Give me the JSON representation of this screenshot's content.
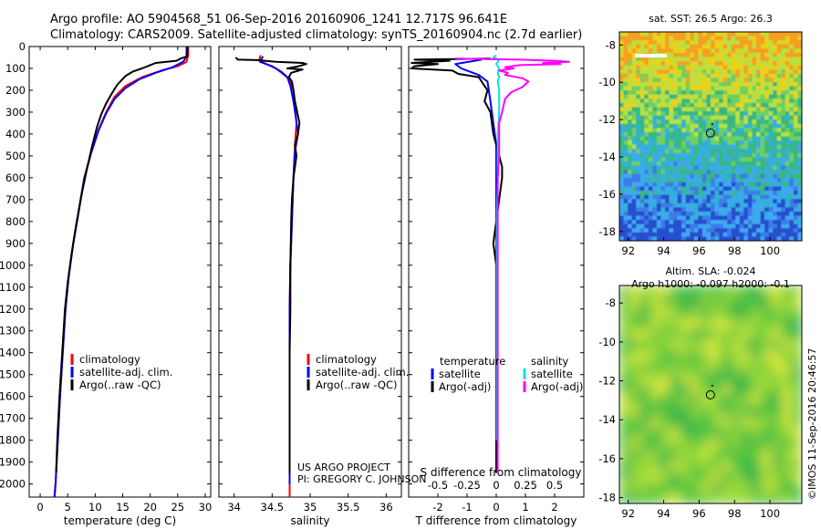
{
  "header": {
    "line1": "Argo profile: AO 5904568_51 06-Sep-2016 20160906_1241 12.717S 96.641E",
    "line2": "Climatology: CARS2009. Satellite-adjusted climatology: synTS_20160904.nc (2.7d earlier)"
  },
  "credit": {
    "project": "US ARGO PROJECT",
    "pi": "PI: GREGORY C. JOHNSON",
    "imos": "©IMOS 11-Sep-2016 20:46:57"
  },
  "colors": {
    "climatology": "#ff0000",
    "satellite_adj": "#0000ff",
    "argo": "#000000",
    "salinity_sat": "#00e5e5",
    "salinity_argo": "#ff00ff"
  },
  "chart_data": [
    {
      "type": "line",
      "id": "temperature",
      "xlabel": "temperature (deg C)",
      "xlim": [
        -2,
        31
      ],
      "ylim": [
        2060,
        0
      ],
      "xticks": [
        0,
        5,
        10,
        15,
        20,
        25,
        30
      ],
      "yticks": [
        0,
        100,
        200,
        300,
        400,
        500,
        600,
        700,
        800,
        900,
        1000,
        1100,
        1200,
        1300,
        1400,
        1500,
        1600,
        1700,
        1800,
        1900,
        2000
      ],
      "legend": [
        "climatology",
        "satellite-adj. clim.",
        "Argo(..raw -QC)"
      ],
      "series": [
        {
          "name": "climatology",
          "color": "#ff0000",
          "points": [
            [
              26.9,
              0
            ],
            [
              26.9,
              40
            ],
            [
              26.6,
              70
            ],
            [
              25,
              90
            ],
            [
              22,
              110
            ],
            [
              18.5,
              140
            ],
            [
              15.5,
              180
            ],
            [
              13.5,
              230
            ],
            [
              12,
              300
            ],
            [
              10.6,
              380
            ],
            [
              9.3,
              480
            ],
            [
              8,
              600
            ],
            [
              7,
              750
            ],
            [
              6,
              900
            ],
            [
              5.2,
              1050
            ],
            [
              4.6,
              1200
            ],
            [
              4.1,
              1400
            ],
            [
              3.6,
              1600
            ],
            [
              3.2,
              1800
            ],
            [
              2.8,
              2000
            ],
            [
              2.6,
              2060
            ]
          ]
        },
        {
          "name": "satellite-adj. clim.",
          "color": "#0000ff",
          "points": [
            [
              26.6,
              0
            ],
            [
              26.6,
              45
            ],
            [
              26,
              70
            ],
            [
              24,
              95
            ],
            [
              21,
              120
            ],
            [
              18,
              150
            ],
            [
              15.5,
              190
            ],
            [
              13.5,
              240
            ],
            [
              12,
              305
            ],
            [
              10.6,
              385
            ],
            [
              9.3,
              485
            ],
            [
              8,
              605
            ],
            [
              7,
              755
            ],
            [
              6,
              905
            ],
            [
              5.2,
              1050
            ],
            [
              4.6,
              1200
            ],
            [
              4.1,
              1400
            ],
            [
              3.6,
              1600
            ],
            [
              3.2,
              1800
            ],
            [
              2.8,
              2000
            ],
            [
              2.6,
              2060
            ]
          ]
        },
        {
          "name": "Argo(..raw -QC)",
          "color": "#000000",
          "points": [
            [
              26.8,
              0
            ],
            [
              26.7,
              45
            ],
            [
              25.5,
              55
            ],
            [
              24.8,
              65
            ],
            [
              21,
              75
            ],
            [
              20,
              85
            ],
            [
              18.5,
              100
            ],
            [
              16.8,
              115
            ],
            [
              15.5,
              135
            ],
            [
              14,
              175
            ],
            [
              13,
              215
            ],
            [
              12,
              260
            ],
            [
              11.1,
              310
            ],
            [
              10.3,
              370
            ],
            [
              9.4,
              460
            ],
            [
              8.5,
              560
            ],
            [
              7.5,
              680
            ],
            [
              6.5,
              820
            ],
            [
              5.7,
              950
            ],
            [
              5,
              1080
            ],
            [
              4.5,
              1200
            ],
            [
              4,
              1400
            ],
            [
              3.5,
              1600
            ],
            [
              3.1,
              1800
            ],
            [
              2.9,
              1950
            ]
          ]
        }
      ]
    },
    {
      "type": "line",
      "id": "salinity",
      "xlabel": "salinity",
      "xlim": [
        33.8,
        36.2
      ],
      "ylim": [
        2060,
        0
      ],
      "xticks": [
        34,
        34.5,
        35,
        35.5,
        36
      ],
      "legend": [
        "climatology",
        "satellite-adj. clim.",
        "Argo(..raw -QC)"
      ],
      "series": [
        {
          "name": "climatology",
          "color": "#ff0000",
          "points": [
            [
              34.35,
              40
            ],
            [
              34.33,
              60
            ],
            [
              34.42,
              80
            ],
            [
              34.55,
              100
            ],
            [
              34.73,
              150
            ],
            [
              34.78,
              200
            ],
            [
              34.8,
              280
            ],
            [
              34.82,
              350
            ],
            [
              34.8,
              450
            ],
            [
              34.78,
              600
            ],
            [
              34.76,
              800
            ],
            [
              34.74,
              1000
            ],
            [
              34.73,
              1200
            ],
            [
              34.73,
              1400
            ],
            [
              34.73,
              1600
            ],
            [
              34.73,
              1800
            ],
            [
              34.73,
              2000
            ],
            [
              34.73,
              2060
            ]
          ]
        },
        {
          "name": "satellite-adj. clim.",
          "color": "#0000ff",
          "points": [
            [
              34.38,
              45
            ],
            [
              34.34,
              70
            ],
            [
              34.5,
              90
            ],
            [
              34.62,
              115
            ],
            [
              34.7,
              140
            ],
            [
              34.74,
              180
            ],
            [
              34.78,
              250
            ],
            [
              34.81,
              320
            ],
            [
              34.84,
              400
            ],
            [
              34.8,
              480
            ],
            [
              34.78,
              600
            ],
            [
              34.76,
              800
            ],
            [
              34.74,
              1000
            ],
            [
              34.73,
              1200
            ],
            [
              34.73,
              1400
            ],
            [
              34.73,
              1600
            ],
            [
              34.73,
              1800
            ],
            [
              34.73,
              2000
            ]
          ]
        },
        {
          "name": "Argo(..raw -QC)",
          "color": "#000000",
          "points": [
            [
              34.02,
              50
            ],
            [
              34.05,
              60
            ],
            [
              34.3,
              62
            ],
            [
              34.55,
              70
            ],
            [
              34.9,
              75
            ],
            [
              34.95,
              80
            ],
            [
              34.85,
              90
            ],
            [
              34.7,
              100
            ],
            [
              34.9,
              105
            ],
            [
              34.75,
              120
            ],
            [
              34.72,
              140
            ],
            [
              34.76,
              160
            ],
            [
              34.78,
              200
            ],
            [
              34.8,
              250
            ],
            [
              34.83,
              300
            ],
            [
              34.86,
              350
            ],
            [
              34.84,
              400
            ],
            [
              34.8,
              450
            ],
            [
              34.82,
              500
            ],
            [
              34.78,
              600
            ],
            [
              34.76,
              700
            ],
            [
              34.75,
              800
            ],
            [
              34.74,
              1000
            ],
            [
              34.74,
              1200
            ],
            [
              34.73,
              1400
            ],
            [
              34.73,
              1600
            ],
            [
              34.73,
              1800
            ],
            [
              34.73,
              1950
            ]
          ]
        }
      ]
    },
    {
      "type": "line",
      "id": "difference",
      "xlabel": "T difference from climatology",
      "xlabel_top": "S difference from climatology",
      "xlim": [
        -3,
        3
      ],
      "ylim": [
        2060,
        0
      ],
      "xticks": [
        -2,
        -1,
        0,
        1,
        2
      ],
      "xticks_top": [
        "-0.5",
        "-0.25",
        "0",
        "0.25",
        "0.5"
      ],
      "legend_left": {
        "title": "temperature",
        "items": [
          "satellite",
          "Argo(-adj)"
        ]
      },
      "legend_right": {
        "title": "salinity",
        "items": [
          "satellite",
          "Argo(-adj)"
        ]
      },
      "series": [
        {
          "name": "temperature satellite",
          "color": "#0000ff",
          "points": [
            [
              -0.5,
              60
            ],
            [
              -1.4,
              80
            ],
            [
              -1.2,
              100
            ],
            [
              -0.6,
              130
            ],
            [
              -0.3,
              160
            ],
            [
              -0.2,
              250
            ],
            [
              -0.1,
              350
            ],
            [
              0,
              450
            ],
            [
              0,
              600
            ],
            [
              0,
              800
            ],
            [
              0,
              1000
            ],
            [
              0,
              1200
            ],
            [
              0,
              1400
            ],
            [
              0,
              1600
            ],
            [
              0,
              1800
            ],
            [
              0,
              1900
            ]
          ]
        },
        {
          "name": "temperature Argo(-adj)",
          "color": "#000000",
          "points": [
            [
              -0.2,
              55
            ],
            [
              -2.8,
              60
            ],
            [
              -1.6,
              65
            ],
            [
              -2.9,
              75
            ],
            [
              -2,
              80
            ],
            [
              -2.8,
              90
            ],
            [
              -2.9,
              100
            ],
            [
              -1.5,
              110
            ],
            [
              -1.3,
              125
            ],
            [
              -0.6,
              140
            ],
            [
              -0.5,
              160
            ],
            [
              -0.3,
              200
            ],
            [
              -0.4,
              250
            ],
            [
              -0.2,
              300
            ],
            [
              -0.1,
              400
            ],
            [
              0,
              450
            ],
            [
              0.1,
              500
            ],
            [
              0.2,
              550
            ],
            [
              0.2,
              600
            ],
            [
              0.1,
              700
            ],
            [
              0,
              800
            ],
            [
              -0.1,
              900
            ],
            [
              0,
              1000
            ],
            [
              0,
              1200
            ],
            [
              0,
              1400
            ],
            [
              0,
              1600
            ],
            [
              0,
              1800
            ],
            [
              0,
              1950
            ]
          ]
        },
        {
          "name": "salinity satellite",
          "color": "#00e5e5",
          "points": [
            [
              0,
              40
            ],
            [
              -0.1,
              50
            ],
            [
              0.1,
              60
            ],
            [
              0,
              80
            ],
            [
              0.1,
              100
            ],
            [
              0.05,
              120
            ],
            [
              0.1,
              140
            ],
            [
              0.05,
              160
            ],
            [
              0.1,
              200
            ],
            [
              0.1,
              300
            ],
            [
              0.05,
              400
            ],
            [
              0.05,
              600
            ],
            [
              0.02,
              800
            ],
            [
              0.02,
              1000
            ],
            [
              0.02,
              1200
            ],
            [
              0.02,
              1400
            ],
            [
              0.02,
              1600
            ],
            [
              0.02,
              1800
            ]
          ]
        },
        {
          "name": "salinity Argo(-adj)",
          "color": "#ff00ff",
          "points": [
            [
              -1.4,
              55
            ],
            [
              0.8,
              60
            ],
            [
              2,
              65
            ],
            [
              2.5,
              70
            ],
            [
              1.6,
              75
            ],
            [
              2.2,
              80
            ],
            [
              0.8,
              85
            ],
            [
              0.3,
              95
            ],
            [
              0.6,
              100
            ],
            [
              0.1,
              110
            ],
            [
              0.4,
              120
            ],
            [
              0.3,
              130
            ],
            [
              0.9,
              145
            ],
            [
              1.1,
              160
            ],
            [
              0.9,
              185
            ],
            [
              0.5,
              210
            ],
            [
              0.3,
              240
            ],
            [
              0.2,
              300
            ],
            [
              0.1,
              350
            ],
            [
              0.1,
              400
            ],
            [
              0.1,
              500
            ],
            [
              0.05,
              600
            ],
            [
              0.05,
              800
            ],
            [
              0.05,
              1000
            ],
            [
              0.05,
              1200
            ],
            [
              0.05,
              1400
            ],
            [
              0.05,
              1600
            ],
            [
              0.05,
              1800
            ],
            [
              0.05,
              1950
            ]
          ]
        }
      ]
    },
    {
      "type": "heatmap",
      "id": "sst_map",
      "title": "sat. SST: 26.5 Argo: 26.3",
      "xlim": [
        91.5,
        101.8
      ],
      "ylim": [
        -18.5,
        -7.3
      ],
      "xticks": [
        92,
        94,
        96,
        98,
        100
      ],
      "yticks": [
        -8,
        -10,
        -12,
        -14,
        -16,
        -18
      ],
      "marker": [
        96.641,
        -12.717
      ]
    },
    {
      "type": "heatmap",
      "id": "sla_map",
      "title_line1": "Altim. SLA: -0.024",
      "title_line2": "Argo h1000: -0.097 h2000: -0.1",
      "xlim": [
        91.5,
        101.8
      ],
      "ylim": [
        -18.3,
        -7.1
      ],
      "xticks": [
        92,
        94,
        96,
        98,
        100
      ],
      "yticks": [
        -8,
        -10,
        -12,
        -14,
        -16,
        -18
      ],
      "marker": [
        96.641,
        -12.717
      ]
    }
  ]
}
